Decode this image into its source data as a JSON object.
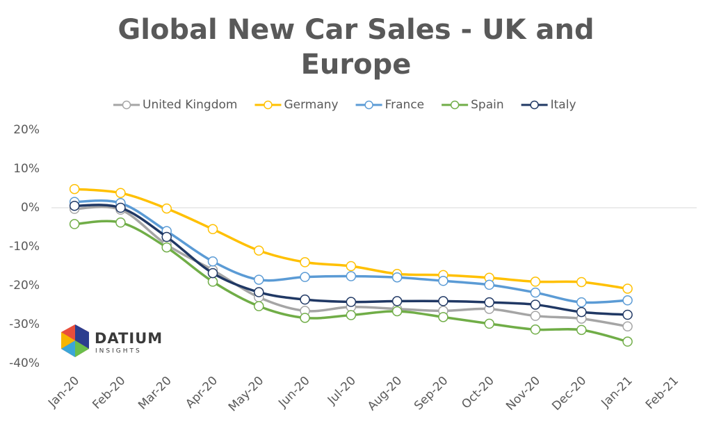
{
  "chart_data": {
    "type": "line",
    "title": "Global New Car Sales - UK and Europe",
    "categories": [
      "Jan-20",
      "Feb-20",
      "Mar-20",
      "Apr-20",
      "May-20",
      "Jun-20",
      "Jul-20",
      "Aug-20",
      "Sep-20",
      "Oct-20",
      "Nov-20",
      "Dec-20",
      "Jan-21",
      "Feb-21"
    ],
    "series": [
      {
        "name": "United Kingdom",
        "color": "#a5a5a5",
        "values": [
          -0.3,
          -0.5,
          -9.5,
          -16,
          -23,
          -26.5,
          -25.5,
          -26,
          -26.5,
          -26,
          -27.8,
          -28.5,
          -30.5,
          null
        ]
      },
      {
        "name": "Germany",
        "color": "#ffc000",
        "values": [
          4.8,
          3.8,
          -0.2,
          -5.5,
          -11,
          -14,
          -15,
          -17,
          -17.3,
          -18,
          -19,
          -19.1,
          -20.8,
          null
        ]
      },
      {
        "name": "France",
        "color": "#5b9bd5",
        "values": [
          1.5,
          1.2,
          -6,
          -13.8,
          -18.5,
          -17.8,
          -17.6,
          -17.9,
          -18.8,
          -19.8,
          -21.8,
          -24.3,
          -23.8,
          null
        ]
      },
      {
        "name": "Spain",
        "color": "#70ad47",
        "values": [
          -4.2,
          -3.8,
          -10.2,
          -19,
          -25.3,
          -28.3,
          -27.6,
          -26.6,
          -28.1,
          -29.8,
          -31.3,
          -31.4,
          -34.4,
          null
        ]
      },
      {
        "name": "Italy",
        "color": "#203864",
        "values": [
          0.5,
          0,
          -7.5,
          -16.8,
          -21.7,
          -23.6,
          -24.2,
          -24,
          -24,
          -24.3,
          -24.9,
          -26.8,
          -27.5,
          null
        ]
      }
    ],
    "ylim": [
      -40,
      20
    ],
    "yticks": [
      {
        "value": -40,
        "label": "-40%"
      },
      {
        "value": -30,
        "label": "-30%"
      },
      {
        "value": -20,
        "label": "-20%"
      },
      {
        "value": -10,
        "label": "-10%"
      },
      {
        "value": 0,
        "label": "0%"
      },
      {
        "value": 10,
        "label": "10%"
      },
      {
        "value": 20,
        "label": "20%"
      }
    ],
    "grid": false,
    "legend": "top"
  },
  "logo": {
    "name": "DATIUM",
    "tagline": "INSIGHTS"
  }
}
